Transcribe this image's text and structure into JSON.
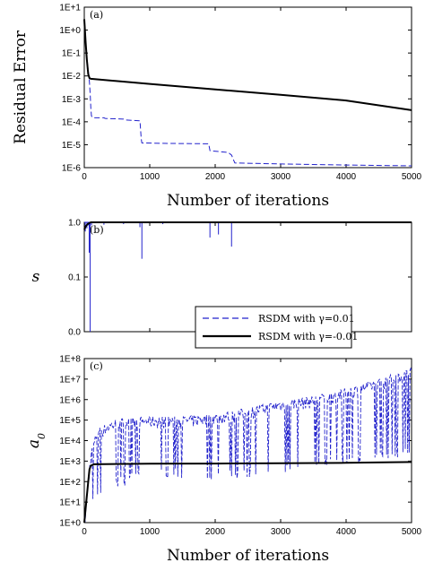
{
  "chart_data": [
    {
      "type": "line",
      "panel_label": "(a)",
      "xlabel": "Number of iterations",
      "ylabel": "Residual Error",
      "yscale": "log",
      "xlim": [
        0,
        5000
      ],
      "ylim": [
        1e-06,
        10
      ],
      "xticks": [
        0,
        1000,
        2000,
        3000,
        4000,
        5000
      ],
      "yticks": [
        1e-06,
        1e-05,
        0.0001,
        0.001,
        0.01,
        0.1,
        1,
        10
      ],
      "ytick_labels": [
        "1E-6",
        "1E-5",
        "1E-4",
        "1E-3",
        "1E-2",
        "1E-1",
        "1E+0",
        "1E+1"
      ],
      "series": [
        {
          "name": "RSDM with γ=0.01",
          "style": "dashed",
          "color": "#2222cc",
          "x": [
            0,
            15,
            30,
            50,
            70,
            80,
            90,
            100,
            110,
            130,
            300,
            320,
            600,
            620,
            850,
            870,
            880,
            1200,
            1900,
            1920,
            2200,
            2250,
            2300,
            3000,
            4000,
            5000
          ],
          "y": [
            2,
            0.5,
            0.1,
            0.03,
            0.01,
            0.005,
            0.0016,
            0.0004,
            0.00018,
            0.00015,
            0.00015,
            0.00014,
            0.00013,
            0.00012,
            0.00011,
            1.8e-05,
            1.2e-05,
            1.15e-05,
            1.1e-05,
            5.5e-06,
            4.6e-06,
            3.5e-06,
            1.6e-06,
            1.45e-06,
            1.3e-06,
            1.2e-06
          ]
        },
        {
          "name": "RSDM with γ=-0.01",
          "style": "solid",
          "color": "#000000",
          "x": [
            0,
            20,
            40,
            60,
            80,
            100,
            1000,
            2000,
            3000,
            4000,
            5000
          ],
          "y": [
            3,
            0.3,
            0.05,
            0.012,
            0.008,
            0.0075,
            0.0045,
            0.0026,
            0.0015,
            0.00085,
            0.00032
          ]
        }
      ]
    },
    {
      "type": "line",
      "panel_label": "(b)",
      "xlabel": "",
      "ylabel": "s",
      "xlim": [
        0,
        5000
      ],
      "ylim": [
        0,
        1
      ],
      "xticks": [
        0,
        1000,
        2000,
        3000,
        4000,
        5000
      ],
      "yticks": [
        0,
        0.1,
        1
      ],
      "ytick_labels": [
        "0.0",
        "0.1",
        "1.0"
      ],
      "series": [
        {
          "name": "RSDM with γ=0.01",
          "style": "dashed",
          "color": "#2222cc",
          "spikes": [
            {
              "x": 15,
              "y": 0.85
            },
            {
              "x": 40,
              "y": 0.9
            },
            {
              "x": 60,
              "y": 0.95
            },
            {
              "x": 75,
              "y": 0.5
            },
            {
              "x": 90,
              "y": 0.0
            },
            {
              "x": 110,
              "y": 0.95
            },
            {
              "x": 300,
              "y": 0.96
            },
            {
              "x": 600,
              "y": 0.97
            },
            {
              "x": 850,
              "y": 0.92
            },
            {
              "x": 880,
              "y": 0.4
            },
            {
              "x": 1200,
              "y": 0.97
            },
            {
              "x": 1920,
              "y": 0.75
            },
            {
              "x": 2050,
              "y": 0.8
            },
            {
              "x": 2250,
              "y": 0.6
            }
          ],
          "baseline": 1.0
        },
        {
          "name": "RSDM with γ=-0.01",
          "style": "solid",
          "color": "#000000",
          "x": [
            0,
            20,
            50,
            80,
            100,
            5000
          ],
          "y": [
            0.88,
            0.93,
            0.97,
            0.99,
            1.0,
            1.0
          ]
        }
      ]
    },
    {
      "type": "line",
      "panel_label": "(c)",
      "xlabel": "Number of iterations",
      "ylabel": "a0",
      "yscale": "log",
      "xlim": [
        0,
        5000
      ],
      "ylim": [
        1,
        100000000.0
      ],
      "xticks": [
        0,
        1000,
        2000,
        3000,
        4000,
        5000
      ],
      "yticks": [
        1,
        10,
        100,
        1000,
        10000.0,
        100000.0,
        1000000.0,
        10000000.0,
        100000000.0
      ],
      "ytick_labels": [
        "1E+0",
        "1E+1",
        "1E+2",
        "1E+3",
        "1E+4",
        "1E+5",
        "1E+6",
        "1E+7",
        "1E+8"
      ],
      "series": [
        {
          "name": "RSDM with γ=0.01",
          "style": "dashed",
          "color": "#2222cc",
          "description_values": {
            "x_env": [
              0,
              100,
              200,
              500,
              1000,
              1500,
              2000,
              2500,
              3000,
              3500,
              3900,
              4500,
              5000
            ],
            "y_upper": [
              1,
              3000.0,
              40000.0,
              120000.0,
              150000.0,
              150000.0,
              200000.0,
              400000.0,
              900000.0,
              1500000.0,
              3000000.0,
              10000000.0,
              40000000.0
            ],
            "y_lower": [
              1,
              10,
              30,
              100,
              300,
              300,
              200,
              300,
              500,
              800,
              1000,
              2000,
              3000
            ]
          }
        },
        {
          "name": "RSDM with γ=-0.01",
          "style": "solid",
          "color": "#000000",
          "x": [
            0,
            30,
            60,
            80,
            100,
            150,
            1000,
            2000,
            3000,
            4000,
            5000
          ],
          "y": [
            1,
            10,
            100,
            400,
            600,
            700,
            750,
            760,
            780,
            820,
            900
          ]
        }
      ]
    }
  ],
  "legend": {
    "items": [
      {
        "label": "RSDM with γ=0.01",
        "style": "dashed",
        "color": "#2222cc"
      },
      {
        "label": "RSDM with γ=-0.01",
        "style": "solid",
        "color": "#000000"
      }
    ]
  }
}
